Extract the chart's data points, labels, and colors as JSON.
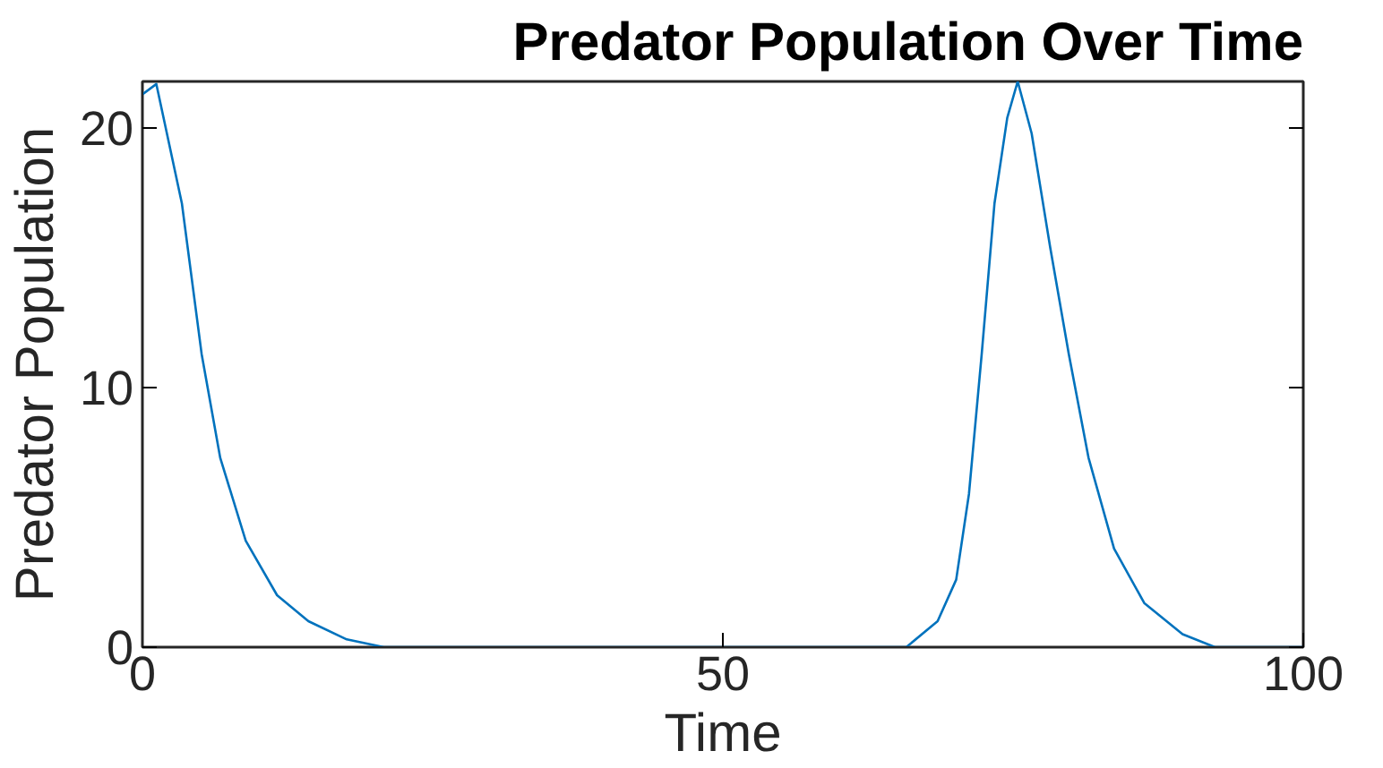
{
  "chart_data": {
    "type": "line",
    "title": "Predator Population Over Time",
    "xlabel": "Time",
    "ylabel": "Predator Population",
    "xlim": [
      0,
      100
    ],
    "ylim": [
      0,
      21.8
    ],
    "xticks": [
      0,
      50,
      100
    ],
    "yticks": [
      0,
      10,
      20
    ],
    "grid": false,
    "series": [
      {
        "color": "#0072bd",
        "x": [
          0,
          1.2,
          3.4,
          5.1,
          6.7,
          8.9,
          11.6,
          14.3,
          17.6,
          20.8,
          30,
          40,
          50,
          60,
          65.8,
          68.5,
          70.1,
          71.2,
          72.3,
          73.4,
          74.5,
          75.4,
          76.6,
          78.2,
          79.8,
          81.5,
          83.7,
          86.3,
          89.6,
          92.4,
          96,
          100
        ],
        "values": [
          21.3,
          21.7,
          17.1,
          11.3,
          7.3,
          4.1,
          2.0,
          1.0,
          0.3,
          0,
          0,
          0,
          0,
          0,
          0,
          1.0,
          2.6,
          5.9,
          11.3,
          17.1,
          20.4,
          21.8,
          19.8,
          15.4,
          11.3,
          7.3,
          3.8,
          1.7,
          0.5,
          0,
          0,
          0
        ]
      }
    ]
  }
}
